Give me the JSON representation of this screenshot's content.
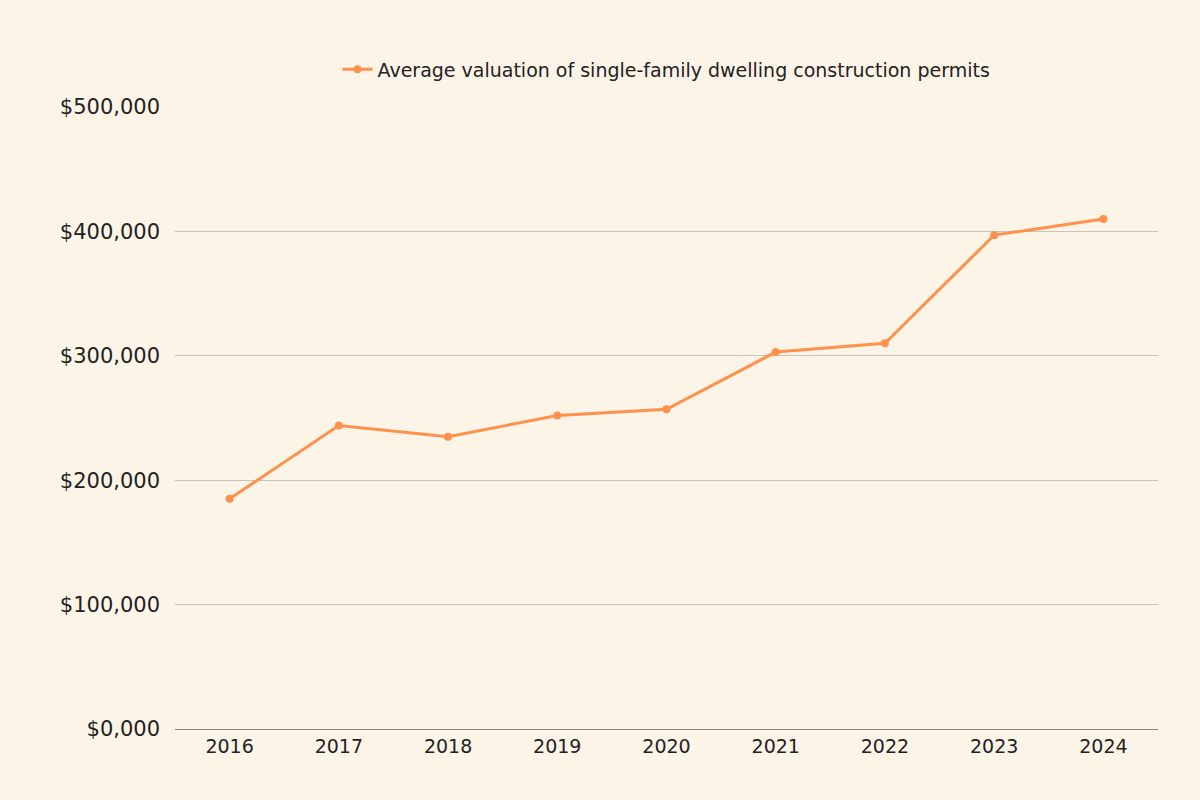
{
  "chart_data": {
    "type": "line",
    "categories": [
      "2016",
      "2017",
      "2018",
      "2019",
      "2020",
      "2021",
      "2022",
      "2023",
      "2024"
    ],
    "series": [
      {
        "name": "Average valuation of single-family dwelling construction permits",
        "color": "#ff914d",
        "marker": "circle",
        "values": [
          185000,
          244000,
          235000,
          252000,
          257000,
          303000,
          310000,
          397000,
          410000
        ]
      }
    ],
    "ylim": [
      0,
      500000
    ],
    "yticks": [
      {
        "value": 0,
        "label": "$0,000"
      },
      {
        "value": 100000,
        "label": "$100,000"
      },
      {
        "value": 200000,
        "label": "$200,000"
      },
      {
        "value": 300000,
        "label": "$300,000"
      },
      {
        "value": 400000,
        "label": "$400,000"
      },
      {
        "value": 500000,
        "label": "$500,000"
      }
    ],
    "grid": true,
    "legend": "top"
  }
}
